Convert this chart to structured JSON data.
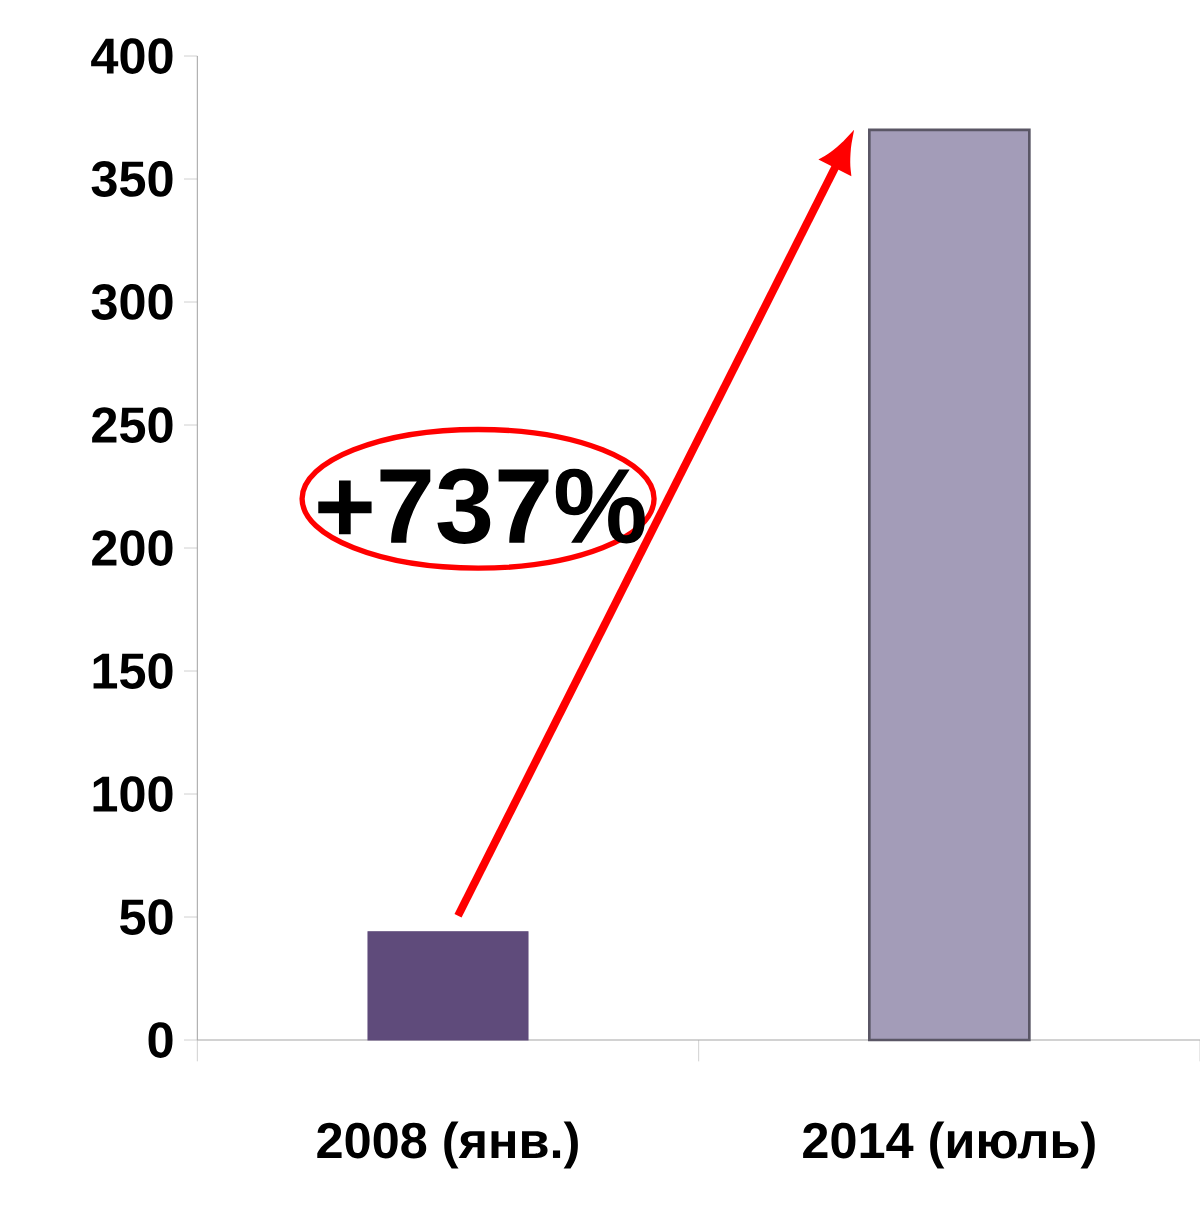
{
  "chart_data": {
    "type": "bar",
    "categories": [
      "2008  (янв.)",
      "2014 (июль)"
    ],
    "values": [
      44,
      370
    ],
    "colors": [
      "#5f4b7b",
      "#a39cb8"
    ],
    "ylim": [
      0,
      400
    ],
    "yticks": [
      0,
      50,
      100,
      150,
      200,
      250,
      300,
      350,
      400
    ],
    "annotations": [
      "+737%"
    ]
  }
}
